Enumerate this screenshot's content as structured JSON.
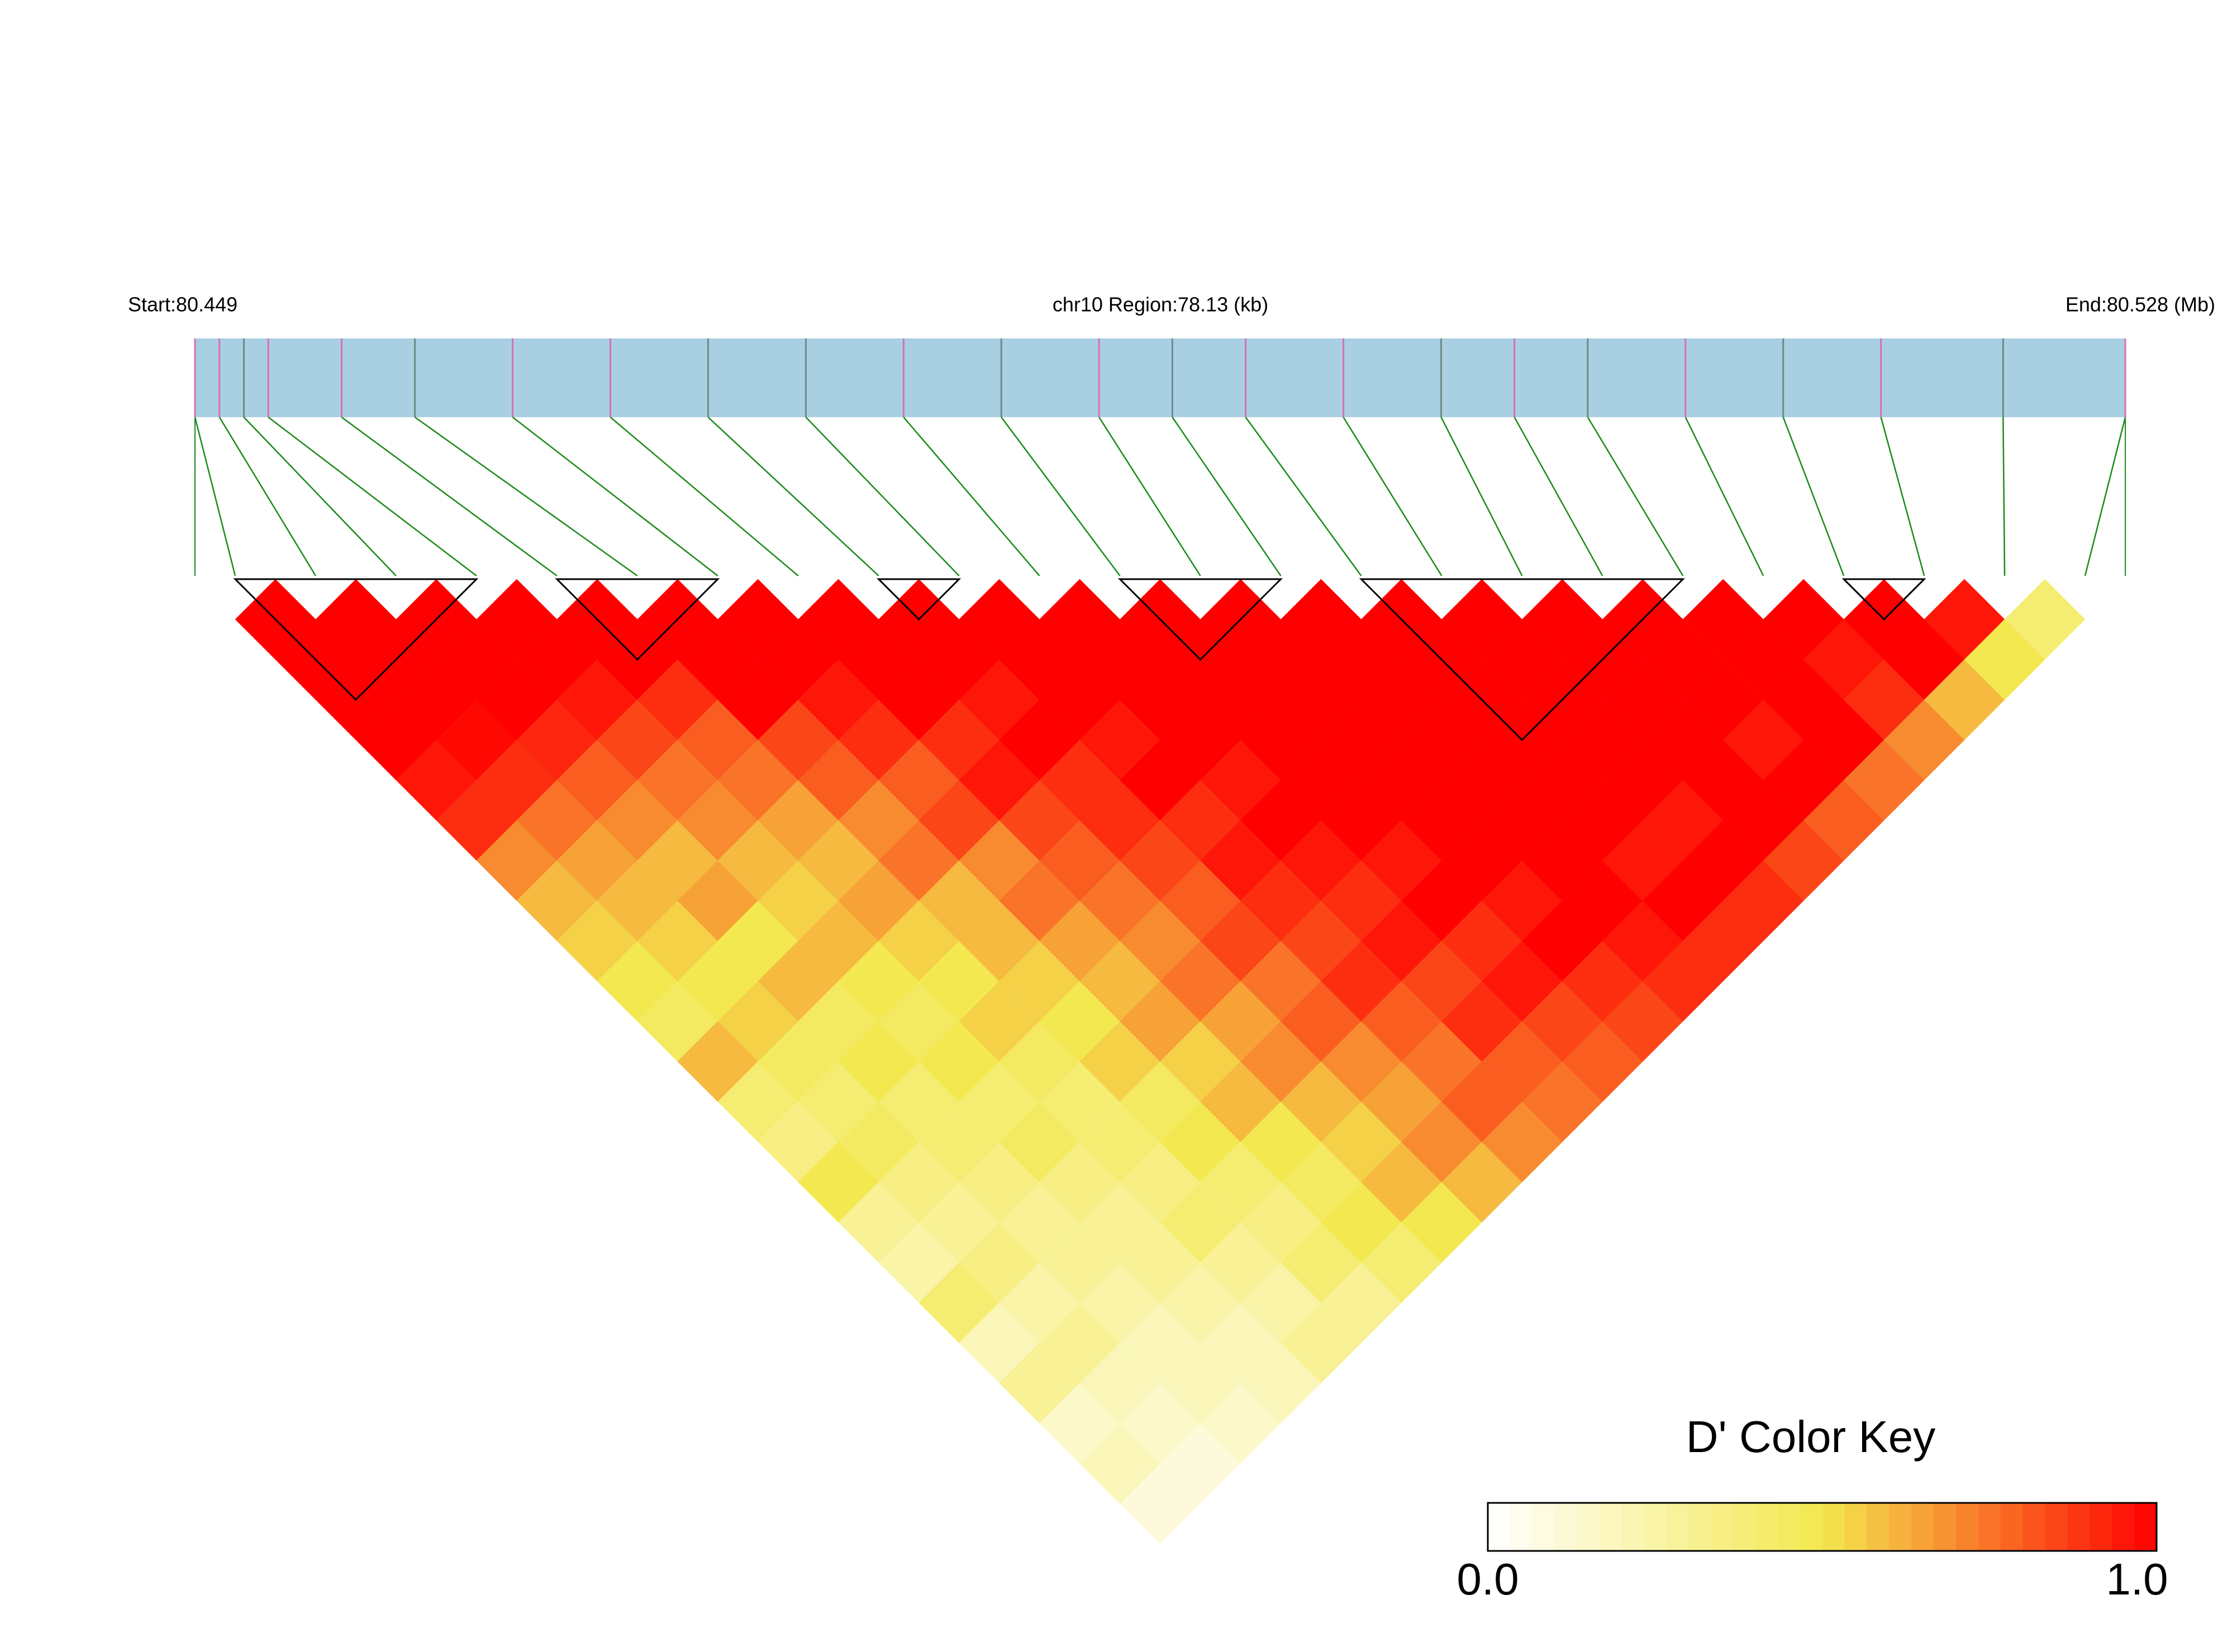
{
  "chart_data": {
    "type": "ld_heatmap",
    "start_label": "Start:80.449",
    "region_label": "chr10 Region:78.13 (kb)",
    "end_label": "End:80.528 (Mb)",
    "key_title": "D' Color Key",
    "xlim": [
      80.449,
      80.528
    ],
    "positions": [
      80.449,
      80.45,
      80.451,
      80.452,
      80.455,
      80.458,
      80.462,
      80.466,
      80.47,
      80.474,
      80.478,
      80.482,
      80.486,
      80.489,
      80.492,
      80.496,
      80.5,
      80.503,
      80.506,
      80.51,
      80.514,
      80.518,
      80.523,
      80.528
    ],
    "marker_colors": [
      "#d86fb8",
      "#d86fb8",
      "#6f8a8a",
      "#d86fb8",
      "#d86fb8",
      "#6f8a8a",
      "#d86fb8",
      "#d86fb8",
      "#6f8a8a",
      "#6f8a8a",
      "#d86fb8",
      "#6f8a8a",
      "#d86fb8",
      "#6f8a8a",
      "#d86fb8",
      "#d86fb8",
      "#6f8a8a",
      "#d86fb8",
      "#6f8a8a",
      "#d86fb8",
      "#6f8a8a",
      "#d86fb8",
      "#6f8a8a",
      "#d86fb8"
    ],
    "track_color": "#a8cfe2",
    "connector_color": "#1a8a1a",
    "ld_matrix": [
      [
        1,
        1,
        1,
        1,
        0.95,
        0.9,
        0.7,
        0.6,
        0.55,
        0.5,
        0.45,
        0.6,
        0.4,
        0.35,
        0.5,
        0.3,
        0.25,
        0.4,
        0.2,
        0.3,
        0.15,
        0.2,
        0.1
      ],
      [
        1,
        1,
        1,
        0.98,
        0.9,
        0.75,
        0.65,
        0.6,
        0.55,
        0.5,
        0.55,
        0.45,
        0.4,
        0.45,
        0.35,
        0.3,
        0.35,
        0.25,
        0.3,
        0.2,
        0.15,
        0.1
      ],
      [
        1,
        1,
        1,
        0.92,
        0.8,
        0.7,
        0.6,
        0.65,
        0.5,
        0.6,
        0.45,
        0.5,
        0.4,
        0.4,
        0.35,
        0.3,
        0.3,
        0.25,
        0.2,
        0.2,
        0.15
      ],
      [
        1,
        1,
        0.95,
        0.85,
        0.75,
        0.7,
        0.6,
        0.55,
        0.6,
        0.5,
        0.45,
        0.5,
        0.4,
        0.45,
        0.35,
        0.3,
        0.3,
        0.25,
        0.2,
        0.2
      ],
      [
        1,
        1,
        0.9,
        0.8,
        0.75,
        0.65,
        0.6,
        0.65,
        0.55,
        0.5,
        0.55,
        0.45,
        0.4,
        0.4,
        0.35,
        0.4,
        0.3,
        0.25,
        0.3
      ],
      [
        1,
        1,
        1,
        0.85,
        0.8,
        0.7,
        0.75,
        0.6,
        0.6,
        0.55,
        0.5,
        0.55,
        0.45,
        0.5,
        0.4,
        0.35,
        0.4,
        0.3
      ],
      [
        1,
        1,
        0.95,
        0.9,
        0.8,
        0.85,
        0.7,
        0.75,
        0.65,
        0.6,
        0.65,
        0.55,
        0.6,
        0.5,
        0.45,
        0.5,
        0.4
      ],
      [
        1,
        1,
        1,
        0.9,
        0.95,
        0.85,
        0.8,
        0.75,
        0.7,
        0.75,
        0.65,
        0.7,
        0.6,
        0.55,
        0.6,
        0.5
      ],
      [
        1,
        1,
        0.95,
        1,
        0.9,
        0.9,
        0.85,
        0.8,
        0.85,
        0.75,
        0.8,
        0.7,
        0.65,
        0.7,
        0.6
      ],
      [
        1,
        1,
        1,
        0.95,
        1,
        0.9,
        0.95,
        0.9,
        0.85,
        0.9,
        0.8,
        0.75,
        0.8,
        0.7
      ],
      [
        1,
        1,
        1,
        1,
        0.95,
        1,
        0.95,
        0.9,
        0.95,
        0.85,
        0.9,
        0.8,
        0.75
      ],
      [
        1,
        1,
        1,
        1,
        1,
        1,
        0.95,
        1,
        0.9,
        0.95,
        0.85,
        0.8
      ],
      [
        1,
        1,
        1,
        1,
        1,
        1,
        1,
        0.95,
        1,
        0.9,
        0.85
      ],
      [
        1,
        1,
        1,
        1,
        1,
        1,
        1,
        1,
        0.95,
        0.9
      ],
      [
        1,
        1,
        1,
        1,
        1,
        1,
        0.95,
        1,
        0.9
      ],
      [
        1,
        1,
        1,
        1,
        1,
        0.95,
        1,
        0.9
      ],
      [
        1,
        1,
        1,
        1,
        1,
        1,
        0.85
      ],
      [
        1,
        1,
        1,
        0.95,
        1,
        0.8
      ],
      [
        1,
        1,
        1,
        1,
        0.75
      ],
      [
        1,
        0.95,
        0.9,
        0.7
      ],
      [
        1,
        1,
        0.6
      ],
      [
        0.95,
        0.5
      ],
      [
        0.4
      ]
    ],
    "blocks": [
      [
        0,
        3
      ],
      [
        4,
        6
      ],
      [
        8,
        9
      ],
      [
        11,
        13
      ],
      [
        14,
        18
      ],
      [
        20,
        21
      ]
    ],
    "color_stops": [
      "#ffffff",
      "#f3e84f",
      "#ff0000"
    ],
    "key_ticks": [
      {
        "value": 0,
        "label": "0.0"
      },
      {
        "value": 1,
        "label": "1.0"
      }
    ]
  }
}
